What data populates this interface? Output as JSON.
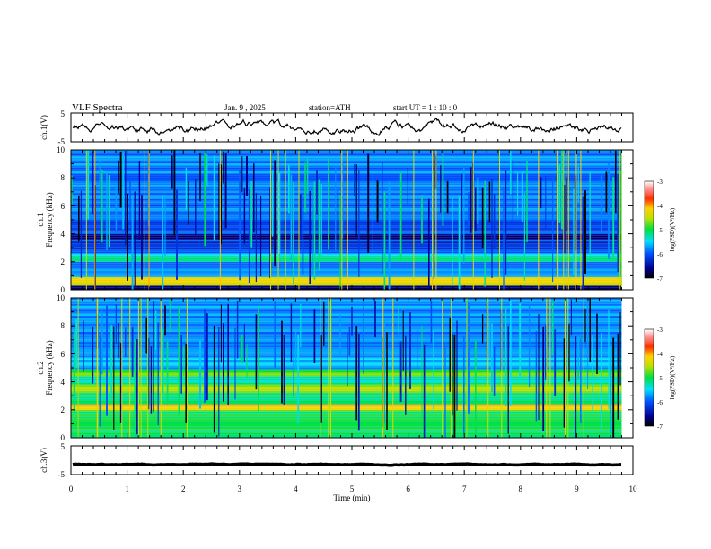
{
  "header": {
    "title": "VLF  Spectra",
    "date": "Jan.  9  , 2025",
    "station": "station=ATH",
    "start_ut": "start  UT  =   1  : 10 : 0"
  },
  "chart_data": {
    "type": "heatmap",
    "x_axis": {
      "label": "Time  (min)",
      "range": [
        0,
        10
      ],
      "ticks": [
        "0",
        "1",
        "2",
        "3",
        "4",
        "5",
        "6",
        "7",
        "8",
        "9",
        "10"
      ],
      "data_end": 9.8
    },
    "ch1_waveform": {
      "type": "line",
      "ylabel": "ch.1(V)",
      "ylim": [
        -5,
        5
      ],
      "yticks": [
        "5",
        "-5"
      ],
      "mean_level": 0,
      "color": "#000000"
    },
    "ch1_spectrogram": {
      "type": "heatmap",
      "ylabel_top": "ch.1",
      "ylabel": "Frequency  (kHz)",
      "ylim": [
        0,
        10
      ],
      "yticks": [
        "10",
        "8",
        "6",
        "4",
        "2",
        "0"
      ],
      "background_band_log_psd": [
        {
          "f0": 0.0,
          "f1": 0.3,
          "v": -6.8
        },
        {
          "f0": 0.3,
          "f1": 0.9,
          "v": -4.2
        },
        {
          "f0": 0.9,
          "f1": 1.5,
          "v": -5.8
        },
        {
          "f0": 1.5,
          "f1": 2.0,
          "v": -6.0
        },
        {
          "f0": 2.0,
          "f1": 2.6,
          "v": -5.3
        },
        {
          "f0": 2.6,
          "f1": 3.6,
          "v": -6.1
        },
        {
          "f0": 3.6,
          "f1": 4.0,
          "v": -6.6
        },
        {
          "f0": 4.0,
          "f1": 5.0,
          "v": -6.0
        },
        {
          "f0": 5.0,
          "f1": 6.5,
          "v": -5.9
        },
        {
          "f0": 6.5,
          "f1": 10.0,
          "v": -5.8
        }
      ],
      "colorbar": {
        "label": "log(PSD)(V²/Hz)",
        "range": [
          -7,
          -3
        ],
        "ticks": [
          "-3",
          "-4",
          "-5",
          "-6",
          "-7"
        ]
      }
    },
    "ch2_spectrogram": {
      "type": "heatmap",
      "ylabel_top": "ch.2",
      "ylabel": "Frequency  (kHz)",
      "ylim": [
        0,
        10
      ],
      "yticks": [
        "10",
        "8",
        "6",
        "4",
        "2",
        "0"
      ],
      "background_band_log_psd": [
        {
          "f0": 0.0,
          "f1": 0.5,
          "v": -5.2
        },
        {
          "f0": 0.5,
          "f1": 1.5,
          "v": -4.9
        },
        {
          "f0": 1.5,
          "f1": 2.0,
          "v": -5.0
        },
        {
          "f0": 2.0,
          "f1": 2.4,
          "v": -4.1
        },
        {
          "f0": 2.4,
          "f1": 3.2,
          "v": -5.0
        },
        {
          "f0": 3.2,
          "f1": 3.8,
          "v": -4.7
        },
        {
          "f0": 3.8,
          "f1": 4.4,
          "v": -5.3
        },
        {
          "f0": 4.4,
          "f1": 4.9,
          "v": -4.8
        },
        {
          "f0": 4.9,
          "f1": 6.0,
          "v": -5.7
        },
        {
          "f0": 6.0,
          "f1": 10.0,
          "v": -5.8
        }
      ],
      "colorbar": {
        "label": "log(PSD)(V²/Hz)",
        "range": [
          -7,
          -3
        ],
        "ticks": [
          "-3",
          "-4",
          "-5",
          "-6",
          "-7"
        ]
      }
    },
    "ch3_waveform": {
      "type": "line",
      "ylabel": "ch.3(V)",
      "ylim": [
        -5,
        5
      ],
      "yticks": [
        "5",
        "-5"
      ],
      "mean_level": -1.5,
      "color": "#000000"
    }
  }
}
